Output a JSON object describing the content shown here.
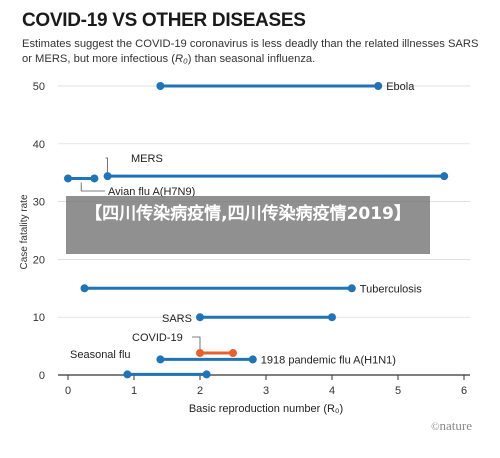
{
  "chart_data": {
    "type": "range-dot",
    "title": "COVID-19 VS OTHER DISEASES",
    "subtitle_before": "Estimates suggest the COVID-19 coronavirus is less deadly than the related illnesses SARS or MERS, but more infectious (",
    "subtitle_r0": "R₀",
    "subtitle_after": ") than seasonal influenza.",
    "xlabel": "Basic reproduction number (R₀)",
    "ylabel": "Case fatality rate",
    "xlim": [
      -0.2,
      6
    ],
    "ylim": [
      0,
      50
    ],
    "xticks": [
      "0",
      "1",
      "2",
      "3",
      "4",
      "5",
      "6"
    ],
    "yticks": [
      "0",
      "10",
      "20",
      "30",
      "40",
      "50"
    ],
    "colors": {
      "default": "#1f73b7",
      "highlight": "#e8612c",
      "axis": "#333333"
    },
    "series": [
      {
        "name": "Ebola",
        "x_range": [
          1.4,
          4.7
        ],
        "y": 50
      },
      {
        "name": "MERS",
        "x_range": [
          0.6,
          5.7
        ],
        "y": 34.4
      },
      {
        "name": "Avian flu A(H7N9)",
        "x_range": [
          0.0,
          0.4
        ],
        "y": 34
      },
      {
        "name": "Tuberculosis",
        "x_range": [
          0.25,
          4.3
        ],
        "y": 15
      },
      {
        "name": "SARS",
        "x_range": [
          2.0,
          4.0
        ],
        "y": 10
      },
      {
        "name": "COVID-19",
        "x_range": [
          2.0,
          2.5
        ],
        "y": 3.8,
        "highlight": true
      },
      {
        "name": "Seasonal flu",
        "x_range": [
          0.9,
          2.1
        ],
        "y": 0.1
      },
      {
        "name": "1918 pandemic flu A(H1N1)",
        "x_range": [
          1.4,
          2.8
        ],
        "y": 2.7
      }
    ]
  },
  "overlay": {
    "banner_text": "【四川传染病疫情,四川传染病疫情2019】"
  },
  "branding": {
    "logo_symbol": "©",
    "logo_text": "nature"
  }
}
